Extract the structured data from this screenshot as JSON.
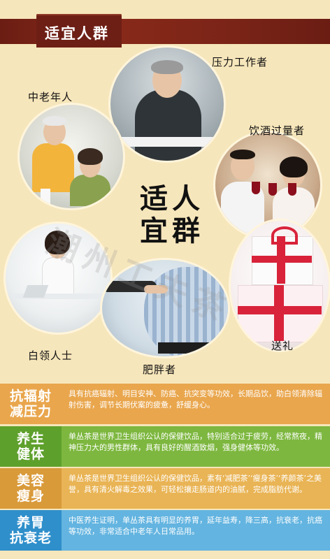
{
  "header": {
    "title": "适宜人群"
  },
  "center": {
    "line1": "适人",
    "line2": "宜群",
    "w1": "适",
    "w2": "人",
    "w3": "宜",
    "w4": "群"
  },
  "labels": {
    "pressure": "压力工作者",
    "elder": "中老年人",
    "drink": "饮酒过量者",
    "office": "白领人士",
    "fat": "肥胖者",
    "gift": "送礼"
  },
  "watermark": "潮州工夫茶",
  "rows": [
    {
      "tag1": "抗辐射",
      "tag2": "减压力",
      "text": "具有抗癌辐射、明目安神、防癌、抗突变等功效，长期品饮，助白领清除辐射伤害，调节长期伏案的疲惫，舒缓身心。"
    },
    {
      "tag1": "养生",
      "tag2": "健体",
      "text": "单丛茶是世界卫生组织公认的保健饮品，特别适合过于疲劳，经常熬夜，精神压力大的男性群体，具有良好的醒酒致烟，强身健体等功效。"
    },
    {
      "tag1": "美容",
      "tag2": "瘦身",
      "text": "单丛茶是世界卫生组织公认的保健饮品，素有‘减肥茶’‘瘦身茶’‘养颜茶’之美誉，具有清火解毒之效果，可轻松攘走肠道内的油腻，完成脂肪代谢。"
    },
    {
      "tag1": "养胃",
      "tag2": "抗衰老",
      "text": "中医养生证明，单丛茶具有明显的养胃，延年益寿，降三高，抗衰老，抗癌等功效，非常适合中老年人日常品用。"
    }
  ],
  "colors": {
    "header": "#7a2417",
    "row1": "#e9a64d",
    "row2": "#7db73f",
    "row3": "#e9b455",
    "row4": "#63b4e0"
  }
}
